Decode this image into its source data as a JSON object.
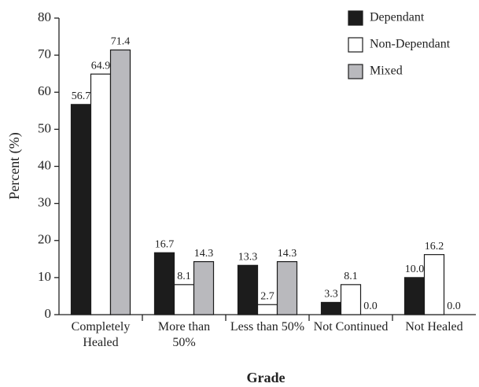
{
  "chart_data": {
    "type": "bar",
    "x_label": "Grade",
    "y_label": "Percent (%)",
    "categories": [
      "Completely Healed",
      "More than 50%",
      "Less than 50%",
      "Not Continued",
      "Not Healed"
    ],
    "series": [
      {
        "name": "Dependant",
        "color": "#1c1c1c",
        "values": [
          56.7,
          16.7,
          13.3,
          3.3,
          10.0
        ],
        "value_labels": [
          "56.7",
          "16.7",
          "13.3",
          "3.3",
          "10.0"
        ]
      },
      {
        "name": "Non-Dependant",
        "color": "#ffffff",
        "values": [
          64.9,
          8.1,
          2.7,
          8.1,
          16.2
        ],
        "value_labels": [
          "64.9",
          "8.1",
          "2.7",
          "8.1",
          "16.2"
        ]
      },
      {
        "name": "Mixed",
        "color": "#b9b9bd",
        "values": [
          71.4,
          14.3,
          14.3,
          0.0,
          0.0
        ],
        "value_labels": [
          "71.4",
          "14.3",
          "14.3",
          "0.0",
          "0.0"
        ]
      }
    ],
    "ylim": [
      0,
      80
    ],
    "yticks": [
      0,
      10,
      20,
      30,
      40,
      50,
      60,
      70,
      80
    ],
    "legend": "upper right"
  }
}
